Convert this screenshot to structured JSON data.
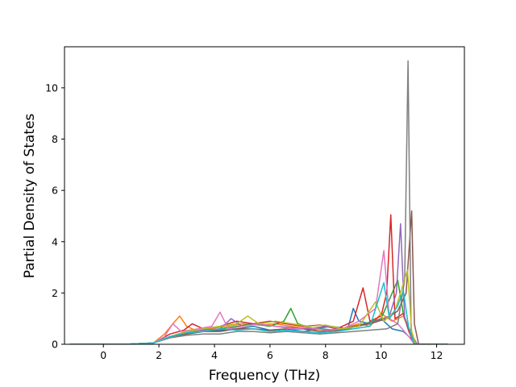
{
  "chart_data": {
    "type": "line",
    "title": "",
    "xlabel": "Frequency (THz)",
    "ylabel": "Partial Density of States",
    "xlim": [
      -1.4,
      13.0
    ],
    "ylim": [
      0,
      11.6
    ],
    "xticks": [
      0,
      2,
      4,
      6,
      8,
      10,
      12
    ],
    "yticks": [
      0,
      2,
      4,
      6,
      8,
      10
    ],
    "xtick_labels": [
      "0",
      "2",
      "4",
      "6",
      "8",
      "10",
      "12"
    ],
    "ytick_labels": [
      "0",
      "2",
      "4",
      "6",
      "8",
      "10"
    ],
    "grid": false,
    "legend": "none",
    "series": [
      {
        "color": "#1f77b4",
        "points": [
          [
            -1.2,
            0
          ],
          [
            0.8,
            0
          ],
          [
            1.8,
            0.05
          ],
          [
            2.4,
            0.3
          ],
          [
            3.0,
            0.45
          ],
          [
            3.6,
            0.5
          ],
          [
            4.2,
            0.55
          ],
          [
            4.8,
            0.6
          ],
          [
            5.4,
            0.7
          ],
          [
            6.0,
            0.55
          ],
          [
            6.6,
            0.6
          ],
          [
            7.2,
            0.5
          ],
          [
            7.8,
            0.6
          ],
          [
            8.4,
            0.55
          ],
          [
            8.8,
            0.6
          ],
          [
            9.0,
            1.4
          ],
          [
            9.2,
            0.9
          ],
          [
            9.6,
            0.8
          ],
          [
            10.0,
            1.0
          ],
          [
            10.4,
            0.6
          ],
          [
            10.8,
            0.5
          ],
          [
            11.1,
            0.2
          ],
          [
            11.3,
            0
          ],
          [
            12.4,
            0
          ]
        ]
      },
      {
        "color": "#ff7f0e",
        "points": [
          [
            -1.2,
            0
          ],
          [
            0.8,
            0
          ],
          [
            1.8,
            0.05
          ],
          [
            2.2,
            0.4
          ],
          [
            2.5,
            0.8
          ],
          [
            2.75,
            1.1
          ],
          [
            3.0,
            0.7
          ],
          [
            3.3,
            0.55
          ],
          [
            3.8,
            0.6
          ],
          [
            4.4,
            0.7
          ],
          [
            5.0,
            0.8
          ],
          [
            5.6,
            0.75
          ],
          [
            6.2,
            0.8
          ],
          [
            6.8,
            0.7
          ],
          [
            7.4,
            0.6
          ],
          [
            8.0,
            0.55
          ],
          [
            8.6,
            0.6
          ],
          [
            9.2,
            0.8
          ],
          [
            9.6,
            0.7
          ],
          [
            10.0,
            1.2
          ],
          [
            10.4,
            0.9
          ],
          [
            10.8,
            1.1
          ],
          [
            11.1,
            0.3
          ],
          [
            11.3,
            0
          ],
          [
            12.4,
            0
          ]
        ]
      },
      {
        "color": "#2ca02c",
        "points": [
          [
            -1.2,
            0
          ],
          [
            0.8,
            0
          ],
          [
            1.8,
            0.05
          ],
          [
            2.4,
            0.3
          ],
          [
            3.0,
            0.4
          ],
          [
            3.6,
            0.5
          ],
          [
            4.2,
            0.6
          ],
          [
            4.8,
            0.7
          ],
          [
            5.4,
            0.8
          ],
          [
            6.0,
            0.7
          ],
          [
            6.5,
            0.9
          ],
          [
            6.75,
            1.4
          ],
          [
            7.0,
            0.8
          ],
          [
            7.6,
            0.6
          ],
          [
            8.2,
            0.7
          ],
          [
            8.8,
            0.6
          ],
          [
            9.4,
            0.8
          ],
          [
            10.0,
            1.0
          ],
          [
            10.6,
            2.5
          ],
          [
            10.8,
            1.2
          ],
          [
            11.1,
            0.3
          ],
          [
            11.3,
            0
          ],
          [
            12.4,
            0
          ]
        ]
      },
      {
        "color": "#d62728",
        "points": [
          [
            -1.2,
            0
          ],
          [
            0.8,
            0
          ],
          [
            1.8,
            0.05
          ],
          [
            2.4,
            0.4
          ],
          [
            2.9,
            0.55
          ],
          [
            3.2,
            0.8
          ],
          [
            3.6,
            0.6
          ],
          [
            4.2,
            0.7
          ],
          [
            4.8,
            0.9
          ],
          [
            5.4,
            0.8
          ],
          [
            6.0,
            0.9
          ],
          [
            6.6,
            0.8
          ],
          [
            7.2,
            0.7
          ],
          [
            7.8,
            0.75
          ],
          [
            8.4,
            0.6
          ],
          [
            9.0,
            0.9
          ],
          [
            9.35,
            2.2
          ],
          [
            9.6,
            0.9
          ],
          [
            10.0,
            1.1
          ],
          [
            10.2,
            2.0
          ],
          [
            10.35,
            5.05
          ],
          [
            10.5,
            1.0
          ],
          [
            10.8,
            1.2
          ],
          [
            11.0,
            0.5
          ],
          [
            11.2,
            0
          ],
          [
            12.4,
            0
          ]
        ]
      },
      {
        "color": "#9467bd",
        "points": [
          [
            -1.2,
            0
          ],
          [
            0.8,
            0
          ],
          [
            1.8,
            0.05
          ],
          [
            2.4,
            0.3
          ],
          [
            3.0,
            0.5
          ],
          [
            3.6,
            0.55
          ],
          [
            4.2,
            0.6
          ],
          [
            4.6,
            1.0
          ],
          [
            5.0,
            0.7
          ],
          [
            5.6,
            0.8
          ],
          [
            6.2,
            0.7
          ],
          [
            6.8,
            0.65
          ],
          [
            7.4,
            0.6
          ],
          [
            8.0,
            0.7
          ],
          [
            8.6,
            0.6
          ],
          [
            9.2,
            0.7
          ],
          [
            9.8,
            0.9
          ],
          [
            10.3,
            1.1
          ],
          [
            10.55,
            2.0
          ],
          [
            10.7,
            4.7
          ],
          [
            10.85,
            1.0
          ],
          [
            11.1,
            0.4
          ],
          [
            11.3,
            0
          ],
          [
            12.4,
            0
          ]
        ]
      },
      {
        "color": "#8c564b",
        "points": [
          [
            -1.2,
            0
          ],
          [
            0.8,
            0
          ],
          [
            1.8,
            0.05
          ],
          [
            2.4,
            0.3
          ],
          [
            3.0,
            0.4
          ],
          [
            3.6,
            0.5
          ],
          [
            4.2,
            0.5
          ],
          [
            4.8,
            0.6
          ],
          [
            5.4,
            0.6
          ],
          [
            6.0,
            0.55
          ],
          [
            6.6,
            0.6
          ],
          [
            7.2,
            0.6
          ],
          [
            7.8,
            0.5
          ],
          [
            8.4,
            0.55
          ],
          [
            9.0,
            0.7
          ],
          [
            9.6,
            0.8
          ],
          [
            10.2,
            1.0
          ],
          [
            10.6,
            1.3
          ],
          [
            10.9,
            2.0
          ],
          [
            11.1,
            5.2
          ],
          [
            11.2,
            0.8
          ],
          [
            11.35,
            0
          ],
          [
            12.4,
            0
          ]
        ]
      },
      {
        "color": "#e377c2",
        "points": [
          [
            -1.2,
            0
          ],
          [
            0.8,
            0
          ],
          [
            1.8,
            0.05
          ],
          [
            2.2,
            0.3
          ],
          [
            2.5,
            0.8
          ],
          [
            2.8,
            0.5
          ],
          [
            3.4,
            0.6
          ],
          [
            3.9,
            0.7
          ],
          [
            4.2,
            1.25
          ],
          [
            4.5,
            0.6
          ],
          [
            5.0,
            0.7
          ],
          [
            5.6,
            0.8
          ],
          [
            6.2,
            0.7
          ],
          [
            6.8,
            0.6
          ],
          [
            7.4,
            0.65
          ],
          [
            8.0,
            0.55
          ],
          [
            8.6,
            0.6
          ],
          [
            9.2,
            0.9
          ],
          [
            9.8,
            1.4
          ],
          [
            10.1,
            3.65
          ],
          [
            10.3,
            1.0
          ],
          [
            10.6,
            0.8
          ],
          [
            11.0,
            0.3
          ],
          [
            11.2,
            0
          ],
          [
            12.4,
            0
          ]
        ]
      },
      {
        "color": "#7f7f7f",
        "points": [
          [
            -1.2,
            0
          ],
          [
            0.8,
            0
          ],
          [
            1.8,
            0.05
          ],
          [
            2.4,
            0.25
          ],
          [
            3.0,
            0.35
          ],
          [
            3.6,
            0.4
          ],
          [
            4.2,
            0.4
          ],
          [
            4.8,
            0.5
          ],
          [
            5.4,
            0.5
          ],
          [
            6.0,
            0.45
          ],
          [
            6.6,
            0.5
          ],
          [
            7.2,
            0.45
          ],
          [
            7.8,
            0.4
          ],
          [
            8.4,
            0.45
          ],
          [
            9.0,
            0.5
          ],
          [
            9.6,
            0.55
          ],
          [
            10.2,
            0.6
          ],
          [
            10.6,
            0.8
          ],
          [
            10.85,
            2.5
          ],
          [
            10.97,
            11.05
          ],
          [
            11.08,
            0.5
          ],
          [
            11.2,
            0
          ],
          [
            12.4,
            0
          ]
        ]
      },
      {
        "color": "#bcbd22",
        "points": [
          [
            -1.2,
            0
          ],
          [
            0.8,
            0
          ],
          [
            1.8,
            0.05
          ],
          [
            2.4,
            0.3
          ],
          [
            3.0,
            0.5
          ],
          [
            3.6,
            0.6
          ],
          [
            4.2,
            0.7
          ],
          [
            4.8,
            0.8
          ],
          [
            5.2,
            1.1
          ],
          [
            5.6,
            0.8
          ],
          [
            6.2,
            0.9
          ],
          [
            6.8,
            0.8
          ],
          [
            7.4,
            0.7
          ],
          [
            8.0,
            0.75
          ],
          [
            8.6,
            0.6
          ],
          [
            9.2,
            0.7
          ],
          [
            9.8,
            1.65
          ],
          [
            10.1,
            0.9
          ],
          [
            10.5,
            1.3
          ],
          [
            10.95,
            2.9
          ],
          [
            11.1,
            0.5
          ],
          [
            11.25,
            0
          ],
          [
            12.4,
            0
          ]
        ]
      },
      {
        "color": "#17becf",
        "points": [
          [
            -1.2,
            0
          ],
          [
            0.8,
            0
          ],
          [
            1.8,
            0.05
          ],
          [
            2.4,
            0.3
          ],
          [
            3.0,
            0.45
          ],
          [
            3.6,
            0.5
          ],
          [
            4.2,
            0.6
          ],
          [
            4.8,
            0.55
          ],
          [
            5.4,
            0.6
          ],
          [
            6.0,
            0.5
          ],
          [
            6.6,
            0.55
          ],
          [
            7.2,
            0.5
          ],
          [
            7.8,
            0.45
          ],
          [
            8.4,
            0.5
          ],
          [
            9.0,
            0.6
          ],
          [
            9.6,
            0.7
          ],
          [
            10.1,
            2.4
          ],
          [
            10.3,
            1.0
          ],
          [
            10.6,
            1.5
          ],
          [
            10.8,
            2.1
          ],
          [
            11.0,
            0.6
          ],
          [
            11.2,
            0
          ],
          [
            12.4,
            0
          ]
        ]
      }
    ]
  }
}
